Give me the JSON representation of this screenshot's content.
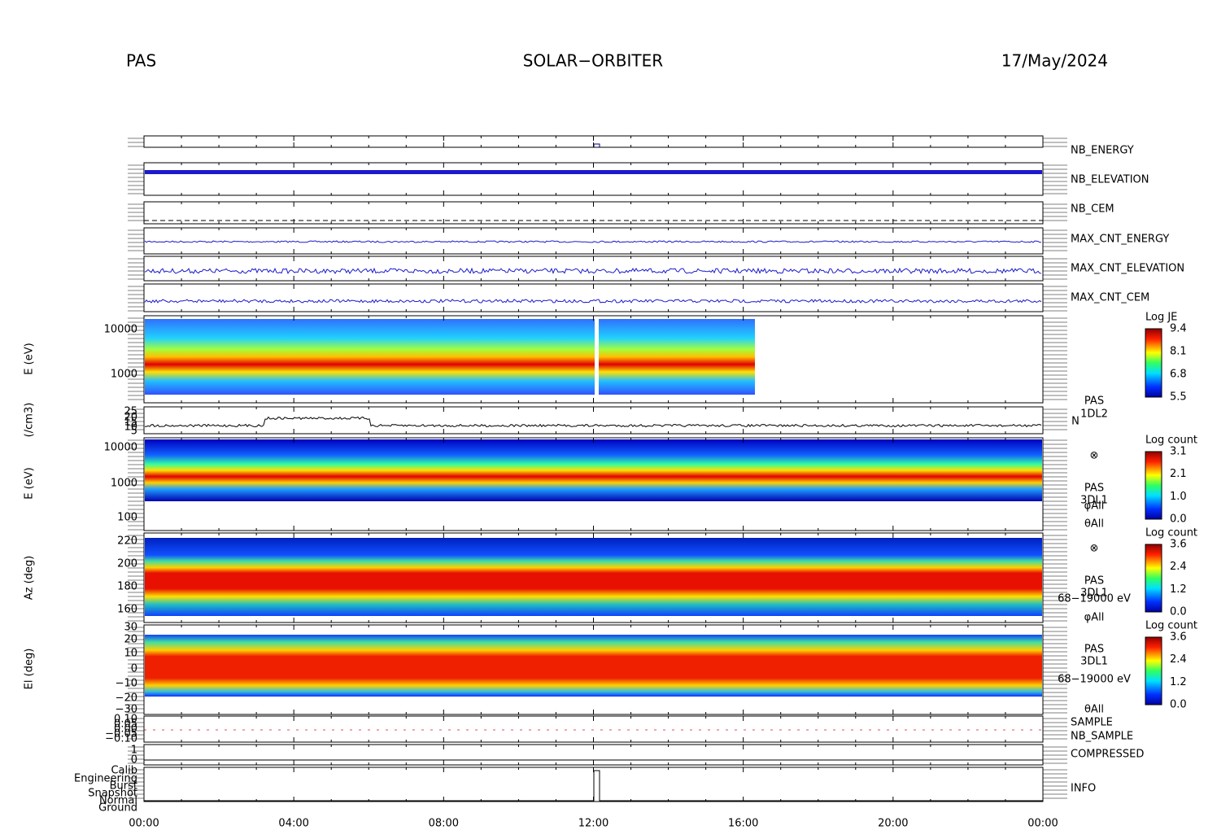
{
  "header": {
    "instrument": "PAS",
    "mission": "SOLAR−ORBITER",
    "date": "17/May/2024"
  },
  "time_ticks": [
    "00:00",
    "04:00",
    "08:00",
    "12:00",
    "16:00",
    "20:00",
    "00:00"
  ],
  "panels": [
    {
      "names": [
        "NB_ENERGY"
      ]
    },
    {
      "names": [
        "NB_ELEVATION"
      ]
    },
    {
      "names": [
        "NB_CEM"
      ]
    },
    {
      "names": [
        "MAX_CNT_ENERGY"
      ]
    },
    {
      "names": [
        "MAX_CNT_ELEVATION"
      ]
    },
    {
      "names": [
        "MAX_CNT_CEM"
      ]
    },
    {
      "ylabel": "E (eV)",
      "yticks": [
        "10000",
        "1000"
      ],
      "colorbar": {
        "title": "Log JE",
        "ticks": [
          "9.4",
          "8.1",
          "6.8",
          "5.5"
        ]
      }
    },
    {
      "ylabel": "(/cm3)",
      "yticks": [
        "25",
        "20",
        "15",
        "10",
        "5"
      ],
      "side": [
        "PAS",
        "1DL2",
        "N"
      ]
    },
    {
      "ylabel": "E (eV)",
      "yticks": [
        "10000",
        "1000",
        "100"
      ],
      "colorbar": {
        "title": "Log count",
        "ticks": [
          "3.1",
          "2.1",
          "1.0",
          "0.0"
        ]
      },
      "side": [
        "⊗",
        "PAS",
        "3DL1",
        "φAll",
        "θAll"
      ]
    },
    {
      "ylabel": "Az (deg)",
      "yticks": [
        "220",
        "200",
        "180",
        "160"
      ],
      "colorbar": {
        "title": "Log count",
        "ticks": [
          "3.6",
          "2.4",
          "1.2",
          "0.0"
        ]
      },
      "side": [
        "⊗",
        "PAS",
        "3DL1",
        "68−19000 eV",
        "φAll"
      ]
    },
    {
      "ylabel": "El (deg)",
      "yticks": [
        "30",
        "20",
        "10",
        "0",
        "−10",
        "−20",
        "−30"
      ],
      "colorbar": {
        "title": "Log count",
        "ticks": [
          "3.6",
          "2.4",
          "1.2",
          "0.0"
        ]
      },
      "side": [
        "PAS",
        "3DL1",
        "68−19000 eV",
        "θAll"
      ]
    },
    {
      "yticks": [
        "0.10",
        "0.05",
        "0.00",
        "−0.05",
        "−0.10"
      ],
      "names": [
        "SAMPLE",
        "NB_SAMPLE"
      ]
    },
    {
      "yticks": [
        "1",
        "0"
      ],
      "names": [
        "COMPRESSED"
      ]
    },
    {
      "yticks": [
        "Calib",
        "Engineering",
        "Burst",
        "Snapshot",
        "Normal",
        "Ground"
      ],
      "names": [
        "INFO"
      ]
    }
  ]
}
